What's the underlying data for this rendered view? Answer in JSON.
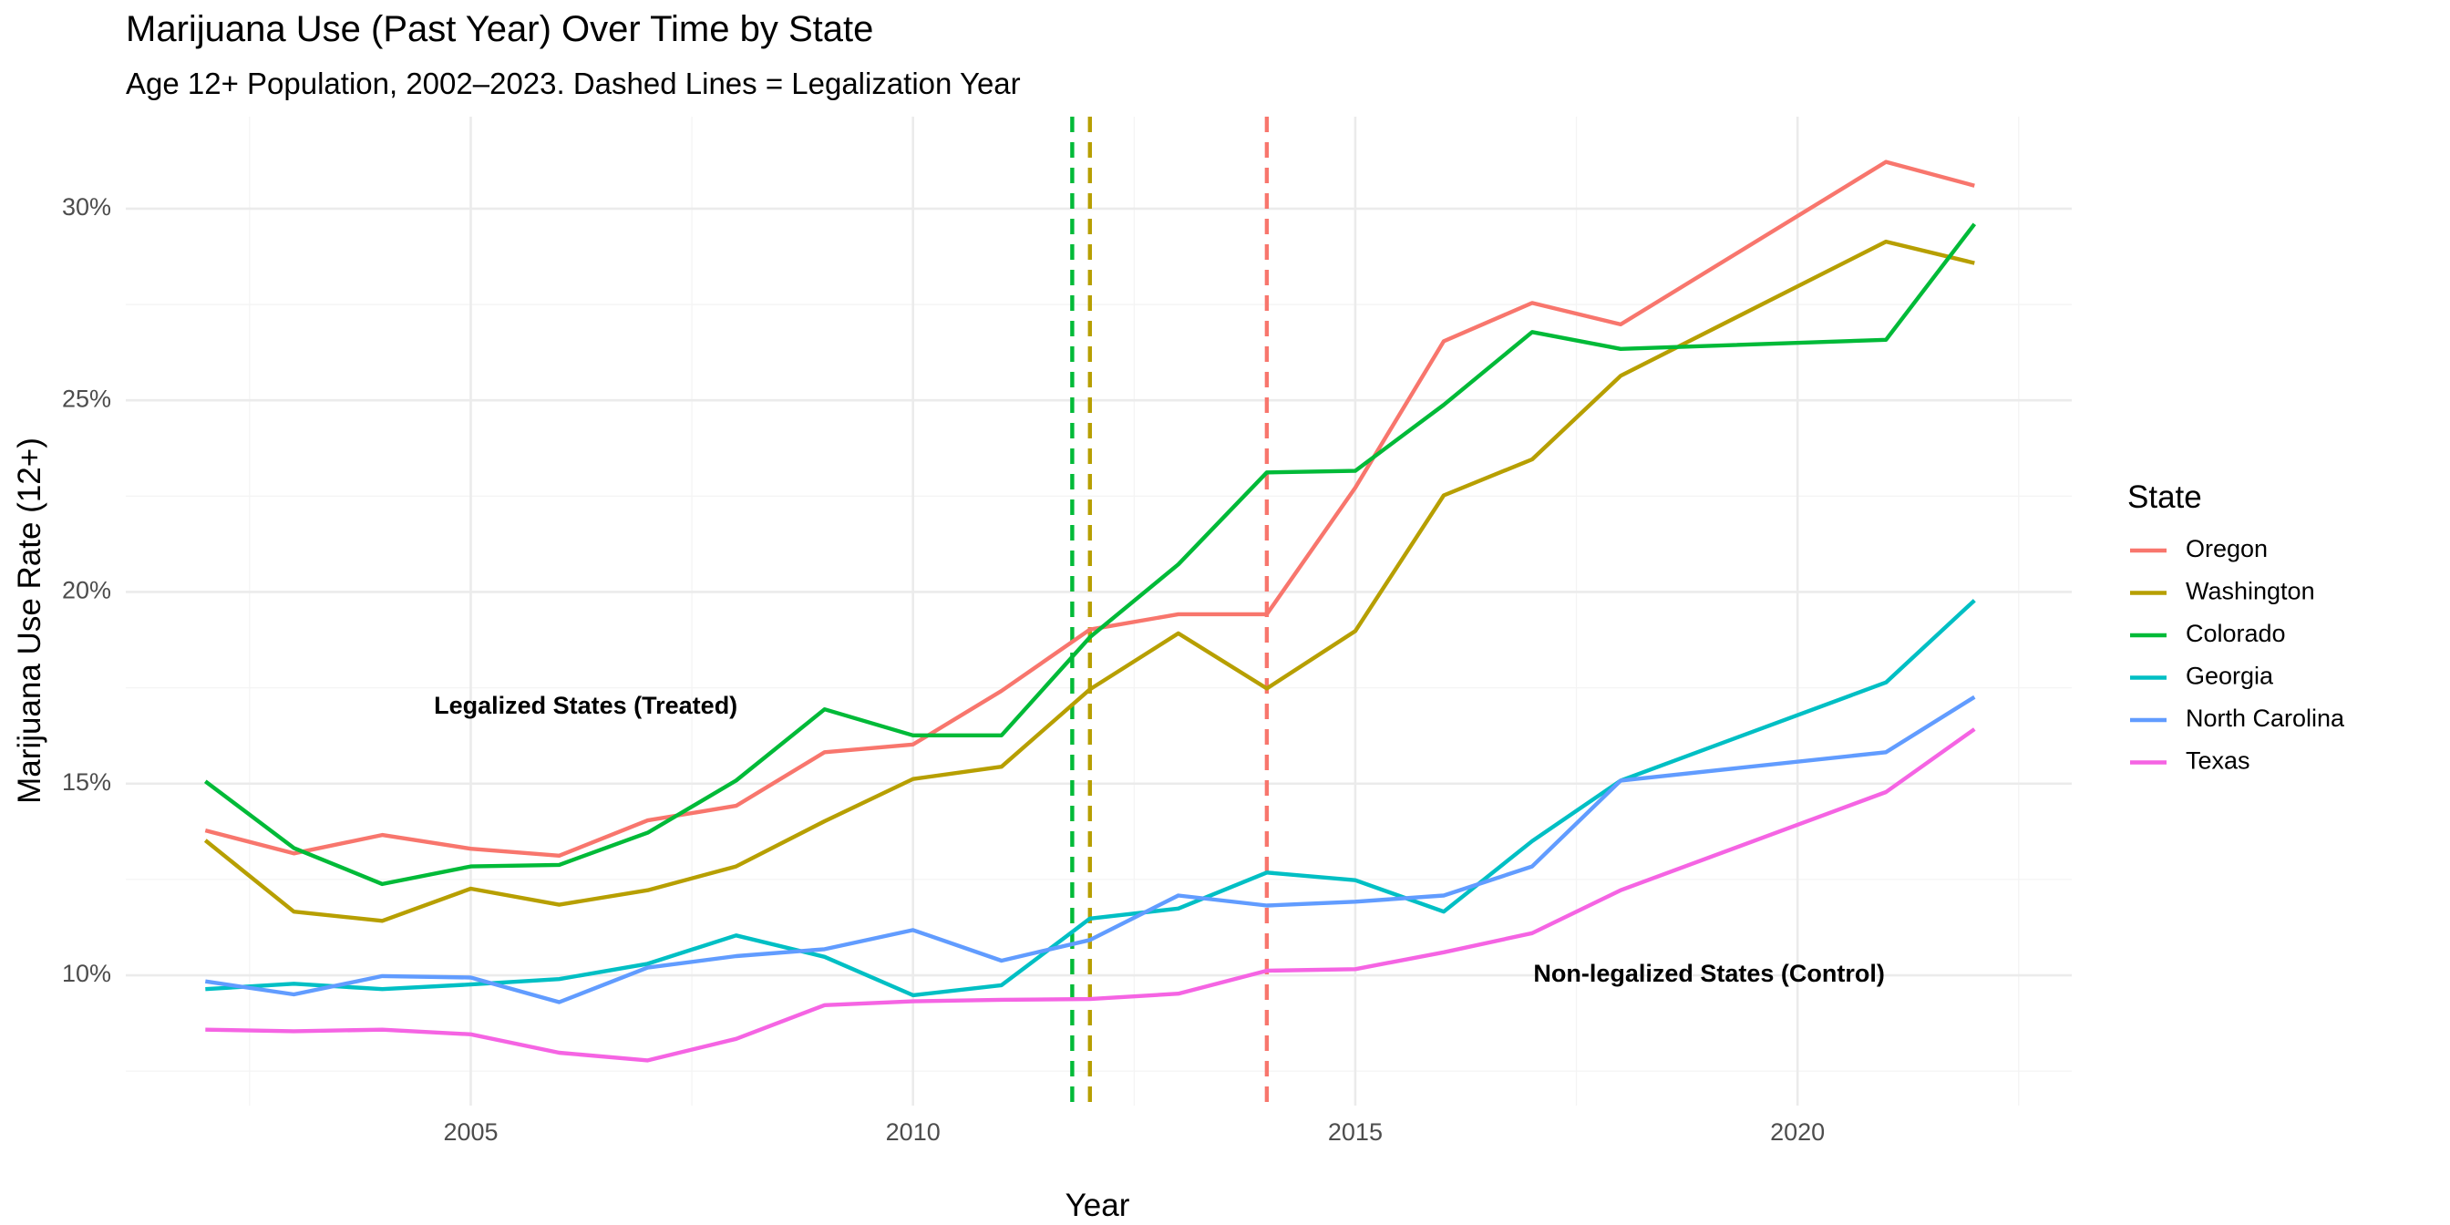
{
  "chart_data": {
    "type": "line",
    "title": "Marijuana Use (Past Year) Over Time by State",
    "subtitle": "Age 12+ Population, 2002–2023. Dashed Lines = Legalization Year",
    "xlabel": "Year",
    "ylabel": "Marijuana Use Rate (12+)",
    "xlim": [
      2001.1,
      2023.1
    ],
    "ylim": [
      0.066,
      0.324
    ],
    "x_ticks": [
      2005,
      2010,
      2015,
      2020
    ],
    "x_tick_labels": [
      "2005",
      "2010",
      "2015",
      "2020"
    ],
    "y_ticks": [
      0.1,
      0.15,
      0.2,
      0.25,
      0.3
    ],
    "y_tick_labels": [
      "10%",
      "15%",
      "20%",
      "25%",
      "30%"
    ],
    "grid": true,
    "legend": {
      "title": "State",
      "position": "right"
    },
    "x": [
      2002,
      2003,
      2004,
      2005,
      2006,
      2007,
      2008,
      2009,
      2010,
      2011,
      2012,
      2013,
      2014,
      2015,
      2016,
      2017,
      2018,
      2021,
      2022
    ],
    "series": [
      {
        "name": "Oregon",
        "color": "#F8766D",
        "values": [
          0.1378,
          0.1318,
          0.1366,
          0.133,
          0.1312,
          0.1404,
          0.1442,
          0.1582,
          0.1602,
          0.1742,
          0.1902,
          0.1942,
          0.1942,
          0.2272,
          0.2654,
          0.2754,
          0.2698,
          0.3122,
          0.306
        ]
      },
      {
        "name": "Washington",
        "color": "#B79F00",
        "values": [
          0.1352,
          0.1166,
          0.1142,
          0.1226,
          0.1184,
          0.1222,
          0.1284,
          0.1402,
          0.1512,
          0.1544,
          0.1746,
          0.1892,
          0.1748,
          0.1898,
          0.2252,
          0.2346,
          0.2564,
          0.2914,
          0.2858
        ]
      },
      {
        "name": "Colorado",
        "color": "#00BA38",
        "values": [
          0.1506,
          0.1332,
          0.1238,
          0.1284,
          0.1288,
          0.1372,
          0.1508,
          0.1694,
          0.1626,
          0.1626,
          0.1882,
          0.2072,
          0.2312,
          0.2316,
          0.2488,
          0.2678,
          0.2634,
          0.2658,
          0.296
        ]
      },
      {
        "name": "Georgia",
        "color": "#00BFC4",
        "values": [
          0.0964,
          0.0978,
          0.0964,
          0.0976,
          0.099,
          0.103,
          0.1104,
          0.1048,
          0.0948,
          0.0974,
          0.1148,
          0.1174,
          0.1268,
          0.1248,
          0.1166,
          0.135,
          0.1508,
          0.1764,
          0.1978
        ]
      },
      {
        "name": "North Carolina",
        "color": "#619CFF",
        "values": [
          0.0984,
          0.095,
          0.0998,
          0.0994,
          0.093,
          0.102,
          0.105,
          0.1068,
          0.1118,
          0.1038,
          0.1092,
          0.1208,
          0.1182,
          0.1192,
          0.1208,
          0.1284,
          0.1508,
          0.1582,
          0.1726
        ]
      },
      {
        "name": "Texas",
        "color": "#F564E3",
        "values": [
          0.0858,
          0.0854,
          0.0858,
          0.0846,
          0.0798,
          0.0778,
          0.0834,
          0.0922,
          0.0932,
          0.0936,
          0.0938,
          0.0952,
          0.1012,
          0.1016,
          0.106,
          0.111,
          0.1222,
          0.1478,
          0.1642
        ]
      }
    ],
    "vlines": [
      {
        "x": 2011.8,
        "color": "#00BA38"
      },
      {
        "x": 2012.0,
        "color": "#B79F00"
      },
      {
        "x": 2014.0,
        "color": "#F8766D"
      }
    ],
    "annotations": [
      {
        "text": "Legalized States (Treated)",
        "x": 2006.3,
        "y": 0.17
      },
      {
        "text": "Non-legalized States (Control)",
        "x": 2019.0,
        "y": 0.1
      }
    ]
  }
}
